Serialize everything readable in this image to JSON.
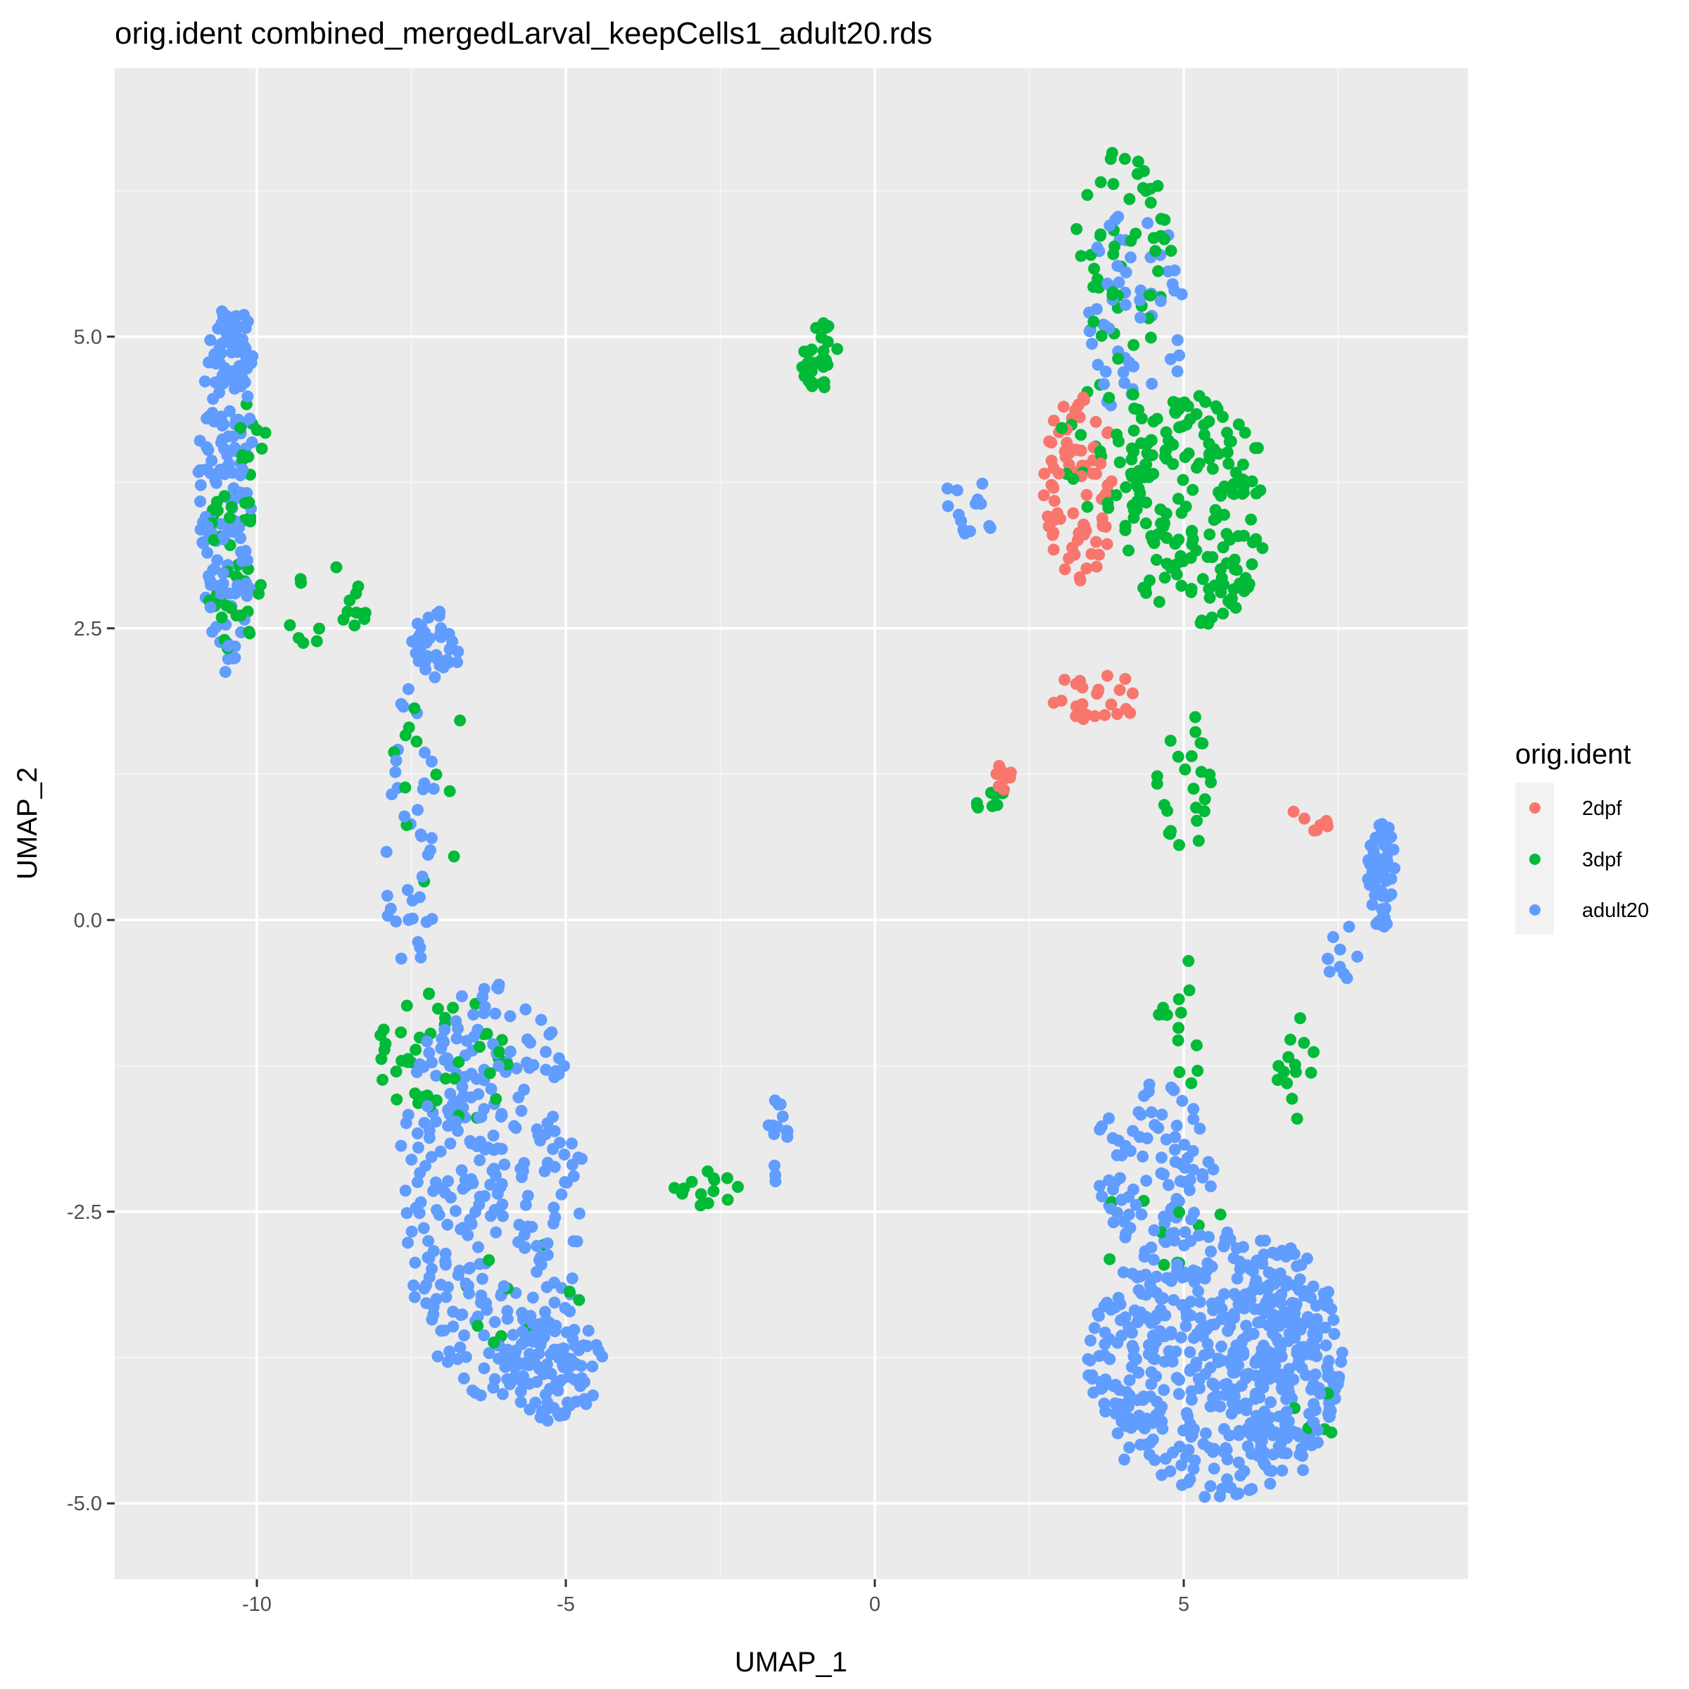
{
  "chart_data": {
    "type": "scatter",
    "title": "orig.ident combined_mergedLarval_keepCells1_adult20.rds",
    "xlabel": "UMAP_1",
    "ylabel": "UMAP_2",
    "xlim": [
      -12.3,
      9.6
    ],
    "ylim": [
      -5.65,
      7.3
    ],
    "x_ticks": [
      -10,
      -5,
      0,
      5
    ],
    "x_tick_labels": [
      "-10",
      "-5",
      "0",
      "5"
    ],
    "y_ticks": [
      -5,
      -2.5,
      0,
      2.5,
      5
    ],
    "y_tick_labels": [
      "-5.0",
      "-2.5",
      "0.0",
      "2.5",
      "5.0"
    ],
    "grid": true,
    "legend": {
      "title": "orig.ident",
      "position": "right",
      "entries": [
        "2dpf",
        "3dpf",
        "adult20"
      ]
    },
    "colors": {
      "2dpf": "#F8766D",
      "3dpf": "#00BA38",
      "adult20": "#619CFF"
    },
    "clusters": [
      {
        "series": "adult20",
        "shape": "ellipse",
        "cx": -10.5,
        "cy": 3.7,
        "rx": 0.45,
        "ry": 1.6,
        "n": 150
      },
      {
        "series": "adult20",
        "shape": "ellipse",
        "cx": -10.4,
        "cy": 4.9,
        "rx": 0.35,
        "ry": 0.35,
        "n": 40
      },
      {
        "series": "3dpf",
        "shape": "ellipse",
        "cx": -10.4,
        "cy": 3.0,
        "rx": 0.5,
        "ry": 0.7,
        "n": 40
      },
      {
        "series": "3dpf",
        "shape": "ellipse",
        "cx": -9.0,
        "cy": 2.7,
        "rx": 0.8,
        "ry": 0.35,
        "n": 18
      },
      {
        "series": "3dpf",
        "shape": "ellipse",
        "cx": -10.1,
        "cy": 4.2,
        "rx": 0.25,
        "ry": 0.4,
        "n": 10
      },
      {
        "series": "adult20",
        "shape": "ellipse",
        "cx": -7.1,
        "cy": 2.35,
        "rx": 0.4,
        "ry": 0.3,
        "n": 40
      },
      {
        "series": "adult20",
        "shape": "ellipse",
        "cx": -7.5,
        "cy": 0.7,
        "rx": 0.45,
        "ry": 1.3,
        "n": 40
      },
      {
        "series": "3dpf",
        "shape": "ellipse",
        "cx": -7.2,
        "cy": 1.2,
        "rx": 0.7,
        "ry": 1.0,
        "n": 12
      },
      {
        "series": "adult20",
        "shape": "ellipse",
        "cx": -6.2,
        "cy": -2.3,
        "rx": 1.5,
        "ry": 1.8,
        "n": 320
      },
      {
        "series": "adult20",
        "shape": "ellipse",
        "cx": -5.2,
        "cy": -3.8,
        "rx": 0.8,
        "ry": 0.5,
        "n": 100
      },
      {
        "series": "3dpf",
        "shape": "ellipse",
        "cx": -7.0,
        "cy": -1.2,
        "rx": 1.1,
        "ry": 0.6,
        "n": 45
      },
      {
        "series": "3dpf",
        "shape": "ellipse",
        "cx": -5.5,
        "cy": -3.3,
        "rx": 1.2,
        "ry": 0.6,
        "n": 10
      },
      {
        "series": "3dpf",
        "shape": "ellipse",
        "cx": -2.7,
        "cy": -2.3,
        "rx": 0.7,
        "ry": 0.15,
        "n": 14
      },
      {
        "series": "adult20",
        "shape": "ellipse",
        "cx": -1.6,
        "cy": -1.9,
        "rx": 0.25,
        "ry": 0.4,
        "n": 14
      },
      {
        "series": "3dpf",
        "shape": "ellipse",
        "cx": -0.9,
        "cy": 4.85,
        "rx": 0.3,
        "ry": 0.35,
        "n": 32
      },
      {
        "series": "3dpf",
        "shape": "ellipse",
        "cx": 4.0,
        "cy": 5.7,
        "rx": 0.8,
        "ry": 0.9,
        "n": 55
      },
      {
        "series": "adult20",
        "shape": "ellipse",
        "cx": 4.2,
        "cy": 5.2,
        "rx": 0.9,
        "ry": 0.9,
        "n": 55
      },
      {
        "series": "2dpf",
        "shape": "ellipse",
        "cx": 3.3,
        "cy": 3.7,
        "rx": 0.6,
        "ry": 0.8,
        "n": 80
      },
      {
        "series": "2dpf",
        "shape": "ellipse",
        "cx": 3.6,
        "cy": 1.9,
        "rx": 0.9,
        "ry": 0.2,
        "n": 25
      },
      {
        "series": "2dpf",
        "shape": "ellipse",
        "cx": 2.1,
        "cy": 1.25,
        "rx": 0.15,
        "ry": 0.15,
        "n": 8
      },
      {
        "series": "2dpf",
        "shape": "ellipse",
        "cx": 7.0,
        "cy": 0.85,
        "rx": 0.4,
        "ry": 0.12,
        "n": 8
      },
      {
        "series": "3dpf",
        "shape": "ellipse",
        "cx": 5.2,
        "cy": 3.5,
        "rx": 1.2,
        "ry": 1.0,
        "n": 170
      },
      {
        "series": "3dpf",
        "shape": "ellipse",
        "cx": 3.8,
        "cy": 4.0,
        "rx": 0.9,
        "ry": 0.6,
        "n": 40
      },
      {
        "series": "3dpf",
        "shape": "ellipse",
        "cx": 5.0,
        "cy": 1.2,
        "rx": 0.5,
        "ry": 0.6,
        "n": 25
      },
      {
        "series": "3dpf",
        "shape": "ellipse",
        "cx": 1.8,
        "cy": 1.05,
        "rx": 0.3,
        "ry": 0.1,
        "n": 8
      },
      {
        "series": "adult20",
        "shape": "ellipse",
        "cx": 1.5,
        "cy": 3.5,
        "rx": 0.5,
        "ry": 0.3,
        "n": 14
      },
      {
        "series": "adult20",
        "shape": "ellipse",
        "cx": 8.2,
        "cy": 0.4,
        "rx": 0.25,
        "ry": 0.5,
        "n": 55
      },
      {
        "series": "adult20",
        "shape": "ellipse",
        "cx": 7.6,
        "cy": -0.3,
        "rx": 0.3,
        "ry": 0.3,
        "n": 10
      },
      {
        "series": "adult20",
        "shape": "ellipse",
        "cx": 4.5,
        "cy": -2.1,
        "rx": 1.0,
        "ry": 0.7,
        "n": 90
      },
      {
        "series": "adult20",
        "shape": "ellipse",
        "cx": 5.5,
        "cy": -3.8,
        "rx": 2.1,
        "ry": 1.15,
        "n": 480
      },
      {
        "series": "adult20",
        "shape": "ellipse",
        "cx": 6.6,
        "cy": -3.8,
        "rx": 1.0,
        "ry": 1.0,
        "n": 120
      },
      {
        "series": "3dpf",
        "shape": "ellipse",
        "cx": 5.0,
        "cy": -0.9,
        "rx": 0.5,
        "ry": 0.6,
        "n": 14
      },
      {
        "series": "3dpf",
        "shape": "ellipse",
        "cx": 6.8,
        "cy": -1.3,
        "rx": 0.4,
        "ry": 0.5,
        "n": 14
      },
      {
        "series": "3dpf",
        "shape": "ellipse",
        "cx": 4.5,
        "cy": -2.6,
        "rx": 1.2,
        "ry": 0.4,
        "n": 10
      },
      {
        "series": "3dpf",
        "shape": "ellipse",
        "cx": 7.2,
        "cy": -4.3,
        "rx": 0.5,
        "ry": 0.3,
        "n": 6
      }
    ]
  }
}
